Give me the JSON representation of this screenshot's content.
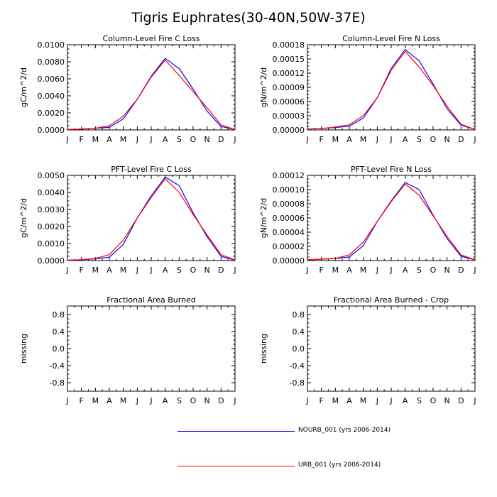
{
  "title": "Tigris Euphrates(30-40N,50W-37E)",
  "colors": {
    "nourb": "#0000ff",
    "urb": "#ff0000",
    "axis": "#000000"
  },
  "months": [
    "J",
    "F",
    "M",
    "A",
    "M",
    "J",
    "J",
    "A",
    "S",
    "O",
    "N",
    "D",
    "J"
  ],
  "legend": [
    {
      "label": "NOURB_001 (yrs 2006-2014)",
      "color": "#0000ff"
    },
    {
      "label": "URB_001 (yrs 2006-2014)",
      "color": "#ff0000"
    }
  ],
  "chart_data": [
    {
      "type": "line",
      "title": "Column-Level Fire C Loss",
      "ylabel": "gC/m^2/d",
      "ylim": [
        0,
        0.01
      ],
      "yticks": [
        "0.0000",
        "0.0020",
        "0.0040",
        "0.0060",
        "0.0080",
        "0.0100"
      ],
      "series": [
        {
          "name": "NOURB_001 (yrs 2006-2014)",
          "values": [
            5e-05,
            0.0001,
            0.0002,
            0.0003,
            0.0013,
            0.0036,
            0.0063,
            0.0084,
            0.0072,
            0.0048,
            0.0022,
            0.0004,
            5e-05
          ]
        },
        {
          "name": "URB_001 (yrs 2006-2014)",
          "values": [
            5e-05,
            0.0001,
            0.0002,
            0.0005,
            0.0016,
            0.0036,
            0.0062,
            0.0082,
            0.0064,
            0.0045,
            0.0026,
            0.0006,
            5e-05
          ]
        }
      ]
    },
    {
      "type": "line",
      "title": "Column-Level Fire N Loss",
      "ylabel": "gN/m^2/d",
      "ylim": [
        0,
        0.00018
      ],
      "yticks": [
        "0.00000",
        "0.00003",
        "0.00006",
        "0.00009",
        "0.00012",
        "0.00015",
        "0.00018"
      ],
      "series": [
        {
          "name": "NOURB_001 (yrs 2006-2014)",
          "values": [
            2e-06,
            3e-06,
            5e-06,
            8e-06,
            2.5e-05,
            6.8e-05,
            0.00013,
            0.00017,
            0.000146,
            9.7e-05,
            4.5e-05,
            1e-05,
            1e-06
          ]
        },
        {
          "name": "URB_001 (yrs 2006-2014)",
          "values": [
            2e-06,
            3e-06,
            6e-06,
            1.1e-05,
            3e-05,
            6.8e-05,
            0.000126,
            0.000166,
            0.000133,
            9.4e-05,
            5e-05,
            1.2e-05,
            1e-06
          ]
        }
      ]
    },
    {
      "type": "line",
      "title": "PFT-Level Fire C Loss",
      "ylabel": "gC/m^2/d",
      "ylim": [
        0,
        0.005
      ],
      "yticks": [
        "0.0000",
        "0.0010",
        "0.0020",
        "0.0030",
        "0.0040",
        "0.0050"
      ],
      "series": [
        {
          "name": "NOURB_001 (yrs 2006-2014)",
          "values": [
            2e-05,
            5e-05,
            0.0001,
            0.0002,
            0.00095,
            0.0025,
            0.0038,
            0.0049,
            0.0044,
            0.0028,
            0.0014,
            0.00025,
            2e-05
          ]
        },
        {
          "name": "URB_001 (yrs 2006-2014)",
          "values": [
            2e-05,
            5e-05,
            0.00012,
            0.00035,
            0.0012,
            0.0025,
            0.0037,
            0.0048,
            0.004,
            0.0027,
            0.0015,
            0.00035,
            3e-05
          ]
        }
      ]
    },
    {
      "type": "line",
      "title": "PFT-Level Fire N Loss",
      "ylabel": "gN/m^2/d",
      "ylim": [
        0,
        0.00012
      ],
      "yticks": [
        "0.00000",
        "0.00002",
        "0.00004",
        "0.00006",
        "0.00008",
        "0.00010",
        "0.00012"
      ],
      "series": [
        {
          "name": "NOURB_001 (yrs 2006-2014)",
          "values": [
            1e-06,
            2e-06,
            3e-06,
            5e-06,
            2.1e-05,
            5.5e-05,
            8.4e-05,
            0.00011,
            0.0001,
            6.4e-05,
            3.1e-05,
            6e-06,
            1e-06
          ]
        },
        {
          "name": "URB_001 (yrs 2006-2014)",
          "values": [
            1e-06,
            2e-06,
            3e-06,
            8e-06,
            2.6e-05,
            5.5e-05,
            8.3e-05,
            0.000108,
            9.2e-05,
            6.3e-05,
            3.4e-05,
            8e-06,
            1e-06
          ]
        }
      ]
    },
    {
      "type": "line",
      "title": "Fractional Area Burned",
      "ylabel": "missing",
      "ylim": [
        -1,
        1
      ],
      "yticks": [
        "-0.8",
        "-0.4",
        "0.0",
        "0.4",
        "0.8"
      ],
      "ytick_values": [
        -0.8,
        -0.4,
        0,
        0.4,
        0.8
      ],
      "series": []
    },
    {
      "type": "line",
      "title": "Fractional Area Burned - Crop",
      "ylabel": "missing",
      "ylim": [
        -1,
        1
      ],
      "yticks": [
        "-0.8",
        "-0.4",
        "0.0",
        "0.4",
        "0.8"
      ],
      "ytick_values": [
        -0.8,
        -0.4,
        0,
        0.4,
        0.8
      ],
      "series": []
    }
  ]
}
